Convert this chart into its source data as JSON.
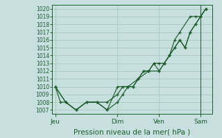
{
  "title": "Pression niveau de la mer( hPa )",
  "bg_color": "#c8dfe0",
  "grid_color": "#a8c8b8",
  "line_color": "#1a5c2a",
  "ylim": [
    1006.5,
    1020.5
  ],
  "yticks": [
    1007,
    1008,
    1009,
    1010,
    1011,
    1012,
    1013,
    1014,
    1015,
    1016,
    1017,
    1018,
    1019,
    1020
  ],
  "xtick_labels": [
    "Jeu",
    "Dim",
    "Ven",
    "Sam"
  ],
  "xtick_pos": [
    0.0,
    3.0,
    5.0,
    7.0
  ],
  "xlim": [
    -0.15,
    7.55
  ],
  "line1_x": [
    0.0,
    0.25,
    0.5,
    1.0,
    1.5,
    2.0,
    2.5,
    3.0,
    3.25,
    3.5,
    3.75,
    4.0,
    4.25,
    4.5,
    4.75,
    5.0,
    5.25,
    5.5,
    5.75,
    6.0,
    6.5,
    6.75,
    7.0,
    7.25
  ],
  "line1_y": [
    1010,
    1008,
    1008,
    1007,
    1008,
    1008,
    1007,
    1008,
    1009,
    1010,
    1010,
    1011,
    1012,
    1012,
    1013,
    1012,
    1013,
    1014,
    1016,
    1017,
    1019,
    1019,
    1019,
    1020
  ],
  "line2_x": [
    0.0,
    0.5,
    1.0,
    1.5,
    2.0,
    2.5,
    3.0,
    3.25,
    3.5,
    3.75,
    4.0,
    4.25,
    4.5,
    4.75,
    5.0,
    5.25,
    5.5,
    5.75,
    6.0,
    6.25,
    6.5,
    6.75,
    7.0,
    7.25
  ],
  "line2_y": [
    1010,
    1008,
    1007,
    1008,
    1008,
    1008,
    1009,
    1010,
    1010,
    1010,
    1011,
    1012,
    1012,
    1013,
    1013,
    1013,
    1014,
    1015,
    1016,
    1015,
    1017,
    1018,
    1019,
    1020
  ],
  "line3_x": [
    0.0,
    0.5,
    1.0,
    1.5,
    2.0,
    2.5,
    3.0,
    3.5,
    4.0,
    4.5,
    5.0,
    5.25,
    5.5,
    5.75,
    6.0,
    6.25,
    6.5,
    6.75,
    7.0,
    7.25
  ],
  "line3_y": [
    1010,
    1008,
    1007,
    1008,
    1008,
    1007,
    1010,
    1010,
    1011,
    1012,
    1012,
    1013,
    1014,
    1015,
    1016,
    1015,
    1017,
    1018,
    1019,
    1020
  ],
  "vline_x": 7.0,
  "vline_color": "#2a6040",
  "font_size_ytick": 5.5,
  "font_size_xtick": 6.5,
  "font_size_xlabel": 7.5
}
